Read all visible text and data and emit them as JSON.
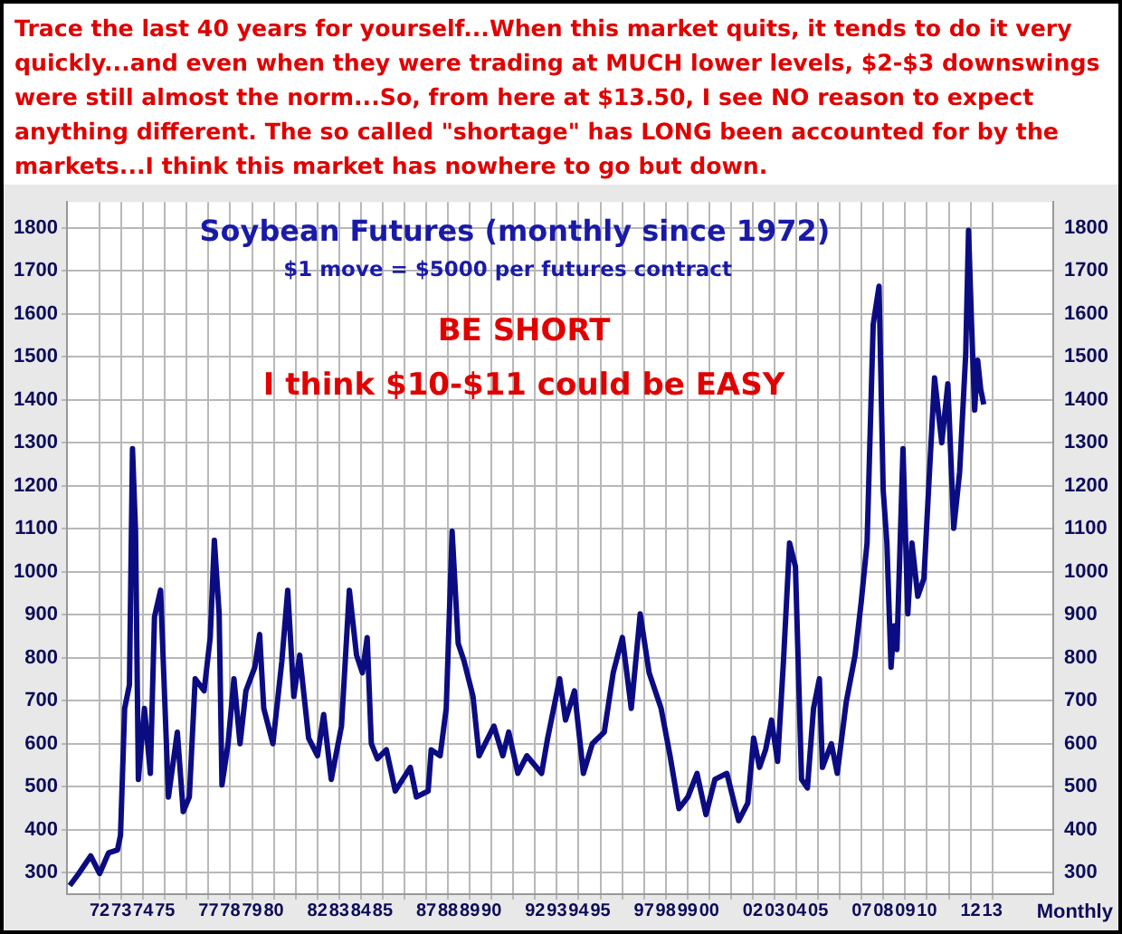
{
  "chart_data": {
    "type": "line",
    "title": "Soybean Futures (monthly since 1972)",
    "subtitle": "$1 move = $5000 per futures contract",
    "annotations": [
      "Trace the last 40 years for yourself...When this market quits, it tends to do it very quickly...and even when they were trading at MUCH lower levels, $2-$3 downswings were still almost the norm...So, from here at $13.50, I see NO reason to expect anything different. The so called \"shortage\" has LONG been accounted for by the markets...I think this market has nowhere to go but down.",
      "BE SHORT",
      "I think $10-$11 could be EASY",
      "Monthly"
    ],
    "series": [
      {
        "color": "#0c0c82",
        "x": [
          1970.63,
          1971.04,
          1971.59,
          1972.0,
          1972.41,
          1972.82,
          1972.96,
          1973.15,
          1973.37,
          1973.51,
          1973.65,
          1973.78,
          1974.06,
          1974.33,
          1974.52,
          1974.8,
          1975.16,
          1975.57,
          1975.84,
          1976.12,
          1976.39,
          1976.8,
          1977.08,
          1977.27,
          1977.49,
          1977.62,
          1977.9,
          1978.17,
          1978.45,
          1978.72,
          1979.13,
          1979.35,
          1979.54,
          1979.96,
          1980.37,
          1980.64,
          1980.92,
          1981.19,
          1981.6,
          1982.01,
          1982.29,
          1982.64,
          1983.11,
          1983.47,
          1983.8,
          1984.07,
          1984.29,
          1984.48,
          1984.76,
          1985.17,
          1985.58,
          1986.27,
          1986.55,
          1987.09,
          1987.23,
          1987.64,
          1987.92,
          1988.19,
          1988.47,
          1988.74,
          1989.15,
          1989.43,
          1990.11,
          1990.52,
          1990.79,
          1991.21,
          1991.62,
          1992.3,
          1992.58,
          1993.13,
          1993.4,
          1993.81,
          1994.22,
          1994.63,
          1995.18,
          1995.59,
          1996.01,
          1996.42,
          1996.83,
          1997.24,
          1997.79,
          1998.2,
          1998.61,
          1999.02,
          1999.44,
          1999.85,
          2000.26,
          2000.81,
          2001.35,
          2001.77,
          2002.04,
          2002.31,
          2002.59,
          2002.86,
          2003.14,
          2003.41,
          2003.69,
          2003.96,
          2004.24,
          2004.51,
          2004.79,
          2005.06,
          2005.2,
          2005.61,
          2005.88,
          2006.29,
          2006.7,
          2006.98,
          2007.25,
          2007.53,
          2007.8,
          2007.99,
          2008.16,
          2008.35,
          2008.49,
          2008.62,
          2008.9,
          2009.12,
          2009.31,
          2009.58,
          2009.86,
          2010.13,
          2010.35,
          2010.68,
          2010.96,
          2011.23,
          2011.5,
          2011.78,
          2011.91,
          2012.05,
          2012.19,
          2012.33,
          2012.47,
          2012.61
        ],
        "values": [
          270,
          298,
          339,
          298,
          346,
          353,
          387,
          682,
          737,
          1286,
          1094,
          517,
          682,
          531,
          895,
          957,
          476,
          627,
          442,
          476,
          751,
          723,
          847,
          1073,
          902,
          504,
          600,
          751,
          600,
          723,
          778,
          854,
          682,
          600,
          792,
          957,
          710,
          806,
          613,
          572,
          668,
          517,
          641,
          957,
          806,
          765,
          847,
          600,
          565,
          586,
          490,
          545,
          476,
          490,
          586,
          572,
          682,
          1094,
          833,
          792,
          710,
          572,
          641,
          572,
          627,
          531,
          572,
          531,
          613,
          751,
          655,
          723,
          531,
          600,
          627,
          765,
          847,
          682,
          902,
          765,
          682,
          572,
          449,
          476,
          531,
          435,
          517,
          531,
          421,
          462,
          613,
          545,
          586,
          655,
          559,
          792,
          1067,
          1012,
          517,
          497,
          682,
          751,
          545,
          600,
          531,
          696,
          806,
          929,
          1067,
          1575,
          1664,
          1190,
          1067,
          778,
          874,
          819,
          1286,
          902,
          1067,
          943,
          984,
          1245,
          1451,
          1300,
          1437,
          1101,
          1231,
          1506,
          1794,
          1575,
          1376,
          1492,
          1424,
          1389
        ]
      }
    ],
    "xlim": [
      1970.5,
      2015.8
    ],
    "xticks": [
      {
        "value": 1972,
        "label": "72"
      },
      {
        "value": 1973,
        "label": "73"
      },
      {
        "value": 1974,
        "label": "74"
      },
      {
        "value": 1975,
        "label": "75"
      },
      {
        "value": 1976,
        "label": null
      },
      {
        "value": 1977,
        "label": "77"
      },
      {
        "value": 1978,
        "label": "78"
      },
      {
        "value": 1979,
        "label": "79"
      },
      {
        "value": 1980,
        "label": "80"
      },
      {
        "value": 1981,
        "label": null
      },
      {
        "value": 1982,
        "label": "82"
      },
      {
        "value": 1983,
        "label": "83"
      },
      {
        "value": 1984,
        "label": "84"
      },
      {
        "value": 1985,
        "label": "85"
      },
      {
        "value": 1986,
        "label": null
      },
      {
        "value": 1987,
        "label": "87"
      },
      {
        "value": 1988,
        "label": "88"
      },
      {
        "value": 1989,
        "label": "89"
      },
      {
        "value": 1990,
        "label": "90"
      },
      {
        "value": 1991,
        "label": null
      },
      {
        "value": 1992,
        "label": "92"
      },
      {
        "value": 1993,
        "label": "93"
      },
      {
        "value": 1994,
        "label": "94"
      },
      {
        "value": 1995,
        "label": "95"
      },
      {
        "value": 1996,
        "label": null
      },
      {
        "value": 1997,
        "label": "97"
      },
      {
        "value": 1998,
        "label": "98"
      },
      {
        "value": 1999,
        "label": "99"
      },
      {
        "value": 2000,
        "label": "00"
      },
      {
        "value": 2001,
        "label": null
      },
      {
        "value": 2002,
        "label": "02"
      },
      {
        "value": 2003,
        "label": "03"
      },
      {
        "value": 2004,
        "label": "04"
      },
      {
        "value": 2005,
        "label": "05"
      },
      {
        "value": 2006,
        "label": null
      },
      {
        "value": 2007,
        "label": "07"
      },
      {
        "value": 2008,
        "label": "08"
      },
      {
        "value": 2009,
        "label": "09"
      },
      {
        "value": 2010,
        "label": "10"
      },
      {
        "value": 2011,
        "label": null
      },
      {
        "value": 2012,
        "label": "12"
      },
      {
        "value": 2013,
        "label": "13"
      }
    ],
    "ylim": [
      250,
      1860
    ],
    "yticks": [
      300,
      400,
      500,
      600,
      700,
      800,
      900,
      1000,
      1100,
      1200,
      1300,
      1400,
      1500,
      1600,
      1700,
      1800
    ],
    "y2lim": [
      250,
      1860
    ],
    "y2ticks": [
      300,
      400,
      500,
      600,
      700,
      800,
      900,
      1000,
      1100,
      1200,
      1300,
      1400,
      1500,
      1600,
      1700,
      1800
    ],
    "grid": true,
    "legend": false,
    "marker": "none",
    "line_style": "solid"
  }
}
